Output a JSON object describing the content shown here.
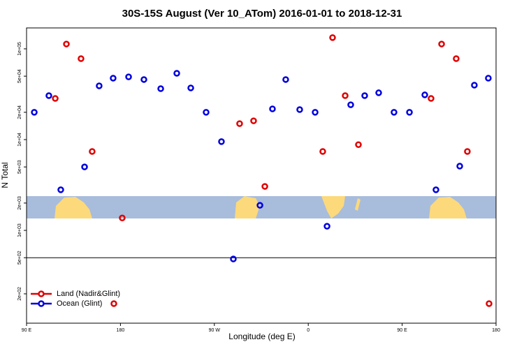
{
  "chart_data": {
    "type": "scatter",
    "title": "30S-15S August (Ver 10_ATom)   2016-01-01 to 2018-12-31",
    "xlabel": "Longitude (deg E)",
    "ylabel": "N Total",
    "xlim": [
      90,
      540
    ],
    "ylim": [
      95,
      170000
    ],
    "log_y": true,
    "xticks": [
      {
        "value": 90,
        "label": "90 E"
      },
      {
        "value": 180,
        "label": "180"
      },
      {
        "value": 270,
        "label": "90 W"
      },
      {
        "value": 360,
        "label": "0"
      },
      {
        "value": 450,
        "label": "90 E"
      },
      {
        "value": 540,
        "label": "180"
      }
    ],
    "yticks": [
      {
        "value": 200,
        "label": "2e+02"
      },
      {
        "value": 500,
        "label": "5e+02"
      },
      {
        "value": 1000,
        "label": "1e+03"
      },
      {
        "value": 2000,
        "label": "2e+03"
      },
      {
        "value": 5000,
        "label": "5e+03"
      },
      {
        "value": 10000,
        "label": "1e+04"
      },
      {
        "value": 20000,
        "label": "2e+04"
      },
      {
        "value": 50000,
        "label": "5e+04"
      },
      {
        "value": 100000,
        "label": "1e+05"
      }
    ],
    "reference_line": 500,
    "legend": "lower left",
    "series": [
      {
        "name": "Land (Nadir&Glint)",
        "color": "#e00000",
        "x": [
          117.5,
          128.2,
          142.2,
          152.9,
          181.7,
          173.7,
          294.2,
          307.6,
          318.4,
          373.9,
          383.3,
          395.4,
          408.1,
          477.7,
          487.8,
          501.8,
          512.5,
          533.3
        ],
        "values": [
          28400,
          113000,
          78000,
          7400,
          1370,
          156,
          15000,
          16100,
          3050,
          7400,
          133000,
          30500,
          8800,
          28400,
          113000,
          78000,
          7400,
          156
        ]
      },
      {
        "name": "Ocean (Glint)",
        "color": "#0000dd",
        "x": [
          97.4,
          111.4,
          122.8,
          145.6,
          159.6,
          173.0,
          187.8,
          202.5,
          218.6,
          234.0,
          247.4,
          262.1,
          276.8,
          288.2,
          313.7,
          325.7,
          338.4,
          351.8,
          366.6,
          378.0,
          400.7,
          414.1,
          427.5,
          442.2,
          457.0,
          471.7,
          482.4,
          505.2,
          519.2,
          532.6
        ],
        "values": [
          20000,
          30500,
          2800,
          5000,
          39100,
          47500,
          49100,
          45900,
          36400,
          53800,
          37100,
          20000,
          9500,
          484,
          1890,
          21800,
          45900,
          21400,
          20000,
          1110,
          24200,
          30500,
          32800,
          20000,
          20000,
          31100,
          2800,
          5100,
          39800,
          47500
        ]
      }
    ]
  }
}
